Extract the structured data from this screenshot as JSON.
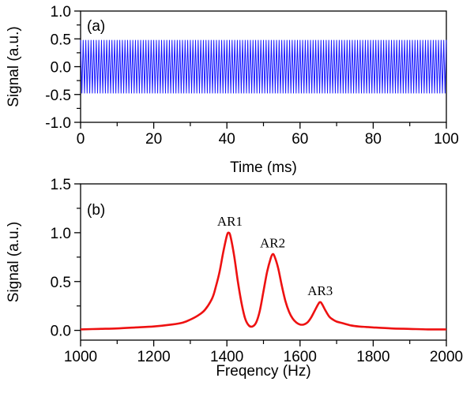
{
  "chart_data": [
    {
      "panel_label": "(a)",
      "type": "line",
      "xlabel": "Time (ms)",
      "ylabel": "Signal (a.u.)",
      "xlim": [
        0,
        100
      ],
      "ylim": [
        -1.0,
        1.0
      ],
      "x_ticks": [
        0,
        20,
        40,
        60,
        80,
        100
      ],
      "x_tick_labels": [
        "0",
        "20",
        "40",
        "60",
        "80",
        "100"
      ],
      "y_ticks": [
        -1.0,
        -0.5,
        0.0,
        0.5,
        1.0
      ],
      "y_tick_labels": [
        "-1.0",
        "-0.5",
        "0.0",
        "0.5",
        "1.0"
      ],
      "grid": false,
      "series": [
        {
          "color": "#1a1aff",
          "waveform": "sinusoid",
          "amplitude": 0.48,
          "offset": 0.0,
          "cycles_in_view": 140
        }
      ]
    },
    {
      "panel_label": "(b)",
      "type": "line",
      "xlabel": "Freqency (Hz)",
      "ylabel": "Signal (a.u.)",
      "xlim": [
        1000,
        2000
      ],
      "ylim": [
        -0.1,
        1.5
      ],
      "x_ticks": [
        1000,
        1200,
        1400,
        1600,
        1800,
        2000
      ],
      "x_tick_labels": [
        "1000",
        "1200",
        "1400",
        "1600",
        "1800",
        "2000"
      ],
      "y_ticks": [
        0.0,
        0.5,
        1.0,
        1.5
      ],
      "y_tick_labels": [
        "0.0",
        "0.5",
        "1.0",
        "1.5"
      ],
      "grid": false,
      "series": [
        {
          "color": "#ee1111",
          "x": [
            1000,
            1050,
            1100,
            1150,
            1200,
            1250,
            1280,
            1300,
            1320,
            1340,
            1360,
            1370,
            1380,
            1390,
            1400,
            1405,
            1410,
            1420,
            1430,
            1440,
            1450,
            1460,
            1470,
            1480,
            1490,
            1500,
            1510,
            1520,
            1525,
            1530,
            1540,
            1550,
            1560,
            1570,
            1580,
            1590,
            1600,
            1610,
            1620,
            1630,
            1640,
            1650,
            1655,
            1660,
            1670,
            1680,
            1690,
            1700,
            1720,
            1740,
            1760,
            1780,
            1800,
            1850,
            1900,
            1950,
            2000
          ],
          "y": [
            0.01,
            0.015,
            0.02,
            0.03,
            0.04,
            0.06,
            0.08,
            0.11,
            0.15,
            0.21,
            0.33,
            0.45,
            0.6,
            0.8,
            0.97,
            1.0,
            0.96,
            0.76,
            0.5,
            0.28,
            0.12,
            0.05,
            0.04,
            0.08,
            0.2,
            0.4,
            0.6,
            0.74,
            0.78,
            0.76,
            0.64,
            0.46,
            0.3,
            0.19,
            0.12,
            0.08,
            0.06,
            0.06,
            0.08,
            0.13,
            0.2,
            0.27,
            0.29,
            0.27,
            0.2,
            0.14,
            0.11,
            0.09,
            0.07,
            0.05,
            0.04,
            0.035,
            0.03,
            0.02,
            0.015,
            0.01,
            0.01
          ]
        }
      ],
      "annotations": [
        {
          "text": "AR1",
          "x": 1408,
          "y": 1.07
        },
        {
          "text": "AR2",
          "x": 1525,
          "y": 0.85
        },
        {
          "text": "AR3",
          "x": 1655,
          "y": 0.36
        }
      ]
    }
  ]
}
